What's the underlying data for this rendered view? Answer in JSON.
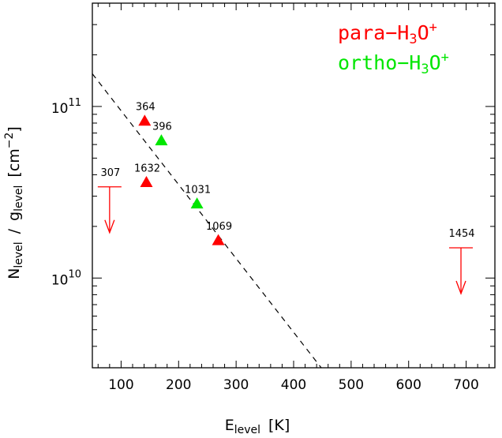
{
  "chart_data": {
    "type": "scatter",
    "title": "",
    "xlabel": {
      "main": "E",
      "sub": "level",
      "unit": "[K]"
    },
    "ylabel": {
      "main": "N",
      "sub": "level",
      "slash": "/",
      "g": "g",
      "gsub": "level",
      "unit_open": "[cm",
      "unit_exp": "−2",
      "unit_close": "]"
    },
    "xlim": [
      50,
      750
    ],
    "ylim": [
      3000000000.0,
      400000000000.0
    ],
    "yscale": "log",
    "x_ticks": [
      100,
      200,
      300,
      400,
      500,
      600,
      700
    ],
    "x_tick_labels": [
      "100",
      "200",
      "300",
      "400",
      "500",
      "600",
      "700"
    ],
    "y_major_ticks": [
      {
        "value": 10000000000.0,
        "base": "10",
        "exp": "10"
      },
      {
        "value": 100000000000.0,
        "base": "10",
        "exp": "11"
      }
    ],
    "legend": {
      "position": "top-right",
      "entries": [
        {
          "prefix": "para−H",
          "sub": "3",
          "mid": "O",
          "sup": "+",
          "color": "#ff0000"
        },
        {
          "prefix": "ortho−H",
          "sub": "3",
          "mid": "O",
          "sup": "+",
          "color": "#00e600"
        }
      ]
    },
    "series": [
      {
        "color": "#ff0000",
        "marker": "triangle",
        "points": [
          {
            "x": 141,
            "y": 82000000000.0,
            "label": "364"
          },
          {
            "x": 144,
            "y": 36000000000.0,
            "label": "1632"
          },
          {
            "x": 269,
            "y": 16500000000.0,
            "label": "1069"
          }
        ],
        "upper_limits": [
          {
            "x": 80,
            "y": 34000000000.0,
            "label": "307"
          },
          {
            "x": 691,
            "y": 15000000000.0,
            "label": "1454"
          }
        ]
      },
      {
        "color": "#00e600",
        "marker": "triangle",
        "points": [
          {
            "x": 170,
            "y": 63000000000.0,
            "label": "396"
          },
          {
            "x": 232,
            "y": 27000000000.0,
            "label": "1031"
          }
        ]
      }
    ],
    "fit_line": {
      "style": "dashed",
      "color": "#000000",
      "x": [
        50,
        448
      ],
      "y": [
        155000000000.0,
        3000000000.0
      ]
    }
  }
}
